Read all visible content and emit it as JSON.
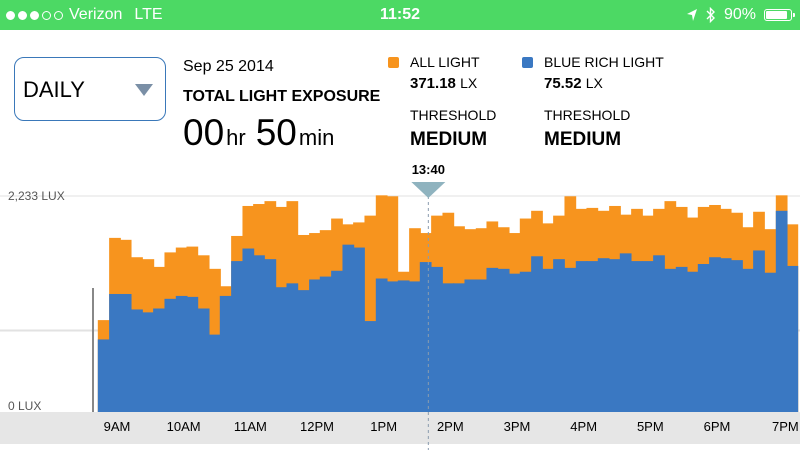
{
  "status_bar": {
    "carrier": "Verizon",
    "network": "LTE",
    "time": "11:52",
    "battery": "90%",
    "signal_dots_filled": 3,
    "signal_dots_total": 5
  },
  "period_selector": {
    "value": "DAILY"
  },
  "summary": {
    "date": "Sep 25 2014",
    "title": "TOTAL LIGHT EXPOSURE",
    "hours": "00",
    "hours_unit": "hr",
    "minutes": "50",
    "minutes_unit": "min"
  },
  "legend": {
    "all_light": {
      "label": "ALL LIGHT",
      "value": "371.18",
      "unit": "LX",
      "threshold_label": "THRESHOLD",
      "threshold_value": "MEDIUM",
      "color": "#f7941e"
    },
    "blue_light": {
      "label": "BLUE RICH LIGHT",
      "value": "75.52",
      "unit": "LX",
      "threshold_label": "THRESHOLD",
      "threshold_value": "MEDIUM",
      "color": "#3a78c2"
    }
  },
  "chart_data": {
    "type": "area",
    "x_unit": "hour of day",
    "ylim": [
      0,
      2233
    ],
    "y_tick_labels": [
      "2,233 LUX",
      "0 LUX"
    ],
    "x_tick_labels": [
      "9AM",
      "10AM",
      "11AM",
      "12PM",
      "1PM",
      "2PM",
      "3PM",
      "4PM",
      "5PM",
      "6PM",
      "7PM"
    ],
    "x_ticks": [
      9,
      10,
      11,
      12,
      13,
      14,
      15,
      16,
      17,
      18,
      19
    ],
    "xlim": [
      8.67,
      19.17
    ],
    "cursor": {
      "label": "13:40",
      "x": 13.67
    },
    "series": [
      {
        "name": "ALL LIGHT",
        "color": "#f7941e",
        "x": [
          8.8,
          8.97,
          9.13,
          9.3,
          9.47,
          9.63,
          9.8,
          9.97,
          10.13,
          10.3,
          10.47,
          10.63,
          10.8,
          10.97,
          11.13,
          11.3,
          11.47,
          11.63,
          11.8,
          11.97,
          12.13,
          12.3,
          12.47,
          12.63,
          12.8,
          12.97,
          13.13,
          13.3,
          13.47,
          13.63,
          13.8,
          13.97,
          14.13,
          14.3,
          14.47,
          14.63,
          14.8,
          14.97,
          15.13,
          15.3,
          15.47,
          15.63,
          15.8,
          15.97,
          16.13,
          16.3,
          16.47,
          16.63,
          16.8,
          16.97,
          17.13,
          17.3,
          17.47,
          17.63,
          17.8,
          17.97,
          18.13,
          18.3,
          18.47,
          18.63,
          18.8,
          18.97,
          19.13
        ],
        "y": [
          950,
          1800,
          1780,
          1600,
          1580,
          1500,
          1650,
          1700,
          1710,
          1620,
          1480,
          1300,
          1820,
          2130,
          2150,
          2180,
          2120,
          2180,
          1830,
          1850,
          1880,
          2000,
          1940,
          1960,
          2030,
          2240,
          2230,
          1450,
          1900,
          1850,
          2030,
          2060,
          1920,
          1890,
          1900,
          1970,
          1910,
          1850,
          2000,
          2080,
          1950,
          2030,
          2230,
          2100,
          2110,
          2080,
          2130,
          2040,
          2100,
          2030,
          2100,
          2180,
          2120,
          2010,
          2120,
          2140,
          2100,
          2060,
          1910,
          2070,
          1890,
          2240,
          1940
        ]
      },
      {
        "name": "BLUE RICH LIGHT",
        "color": "#3a78c2",
        "x": [
          8.8,
          8.97,
          9.13,
          9.3,
          9.47,
          9.63,
          9.8,
          9.97,
          10.13,
          10.3,
          10.47,
          10.63,
          10.8,
          10.97,
          11.13,
          11.3,
          11.47,
          11.63,
          11.8,
          11.97,
          12.13,
          12.3,
          12.47,
          12.63,
          12.8,
          12.97,
          13.13,
          13.3,
          13.47,
          13.63,
          13.8,
          13.97,
          14.13,
          14.3,
          14.47,
          14.63,
          14.8,
          14.97,
          15.13,
          15.3,
          15.47,
          15.63,
          15.8,
          15.97,
          16.13,
          16.3,
          16.47,
          16.63,
          16.8,
          16.97,
          17.13,
          17.3,
          17.47,
          17.63,
          17.8,
          17.97,
          18.13,
          18.3,
          18.47,
          18.63,
          18.8,
          18.97,
          19.13
        ],
        "y": [
          750,
          1220,
          1220,
          1060,
          1030,
          1070,
          1170,
          1200,
          1190,
          1070,
          800,
          1200,
          1560,
          1690,
          1620,
          1580,
          1290,
          1330,
          1260,
          1370,
          1400,
          1460,
          1730,
          1700,
          940,
          1380,
          1350,
          1360,
          1350,
          1550,
          1500,
          1330,
          1330,
          1370,
          1370,
          1490,
          1480,
          1430,
          1450,
          1610,
          1480,
          1580,
          1490,
          1560,
          1560,
          1590,
          1580,
          1640,
          1560,
          1560,
          1620,
          1480,
          1500,
          1450,
          1530,
          1600,
          1590,
          1570,
          1480,
          1670,
          1440,
          2080,
          1510
        ]
      }
    ]
  }
}
